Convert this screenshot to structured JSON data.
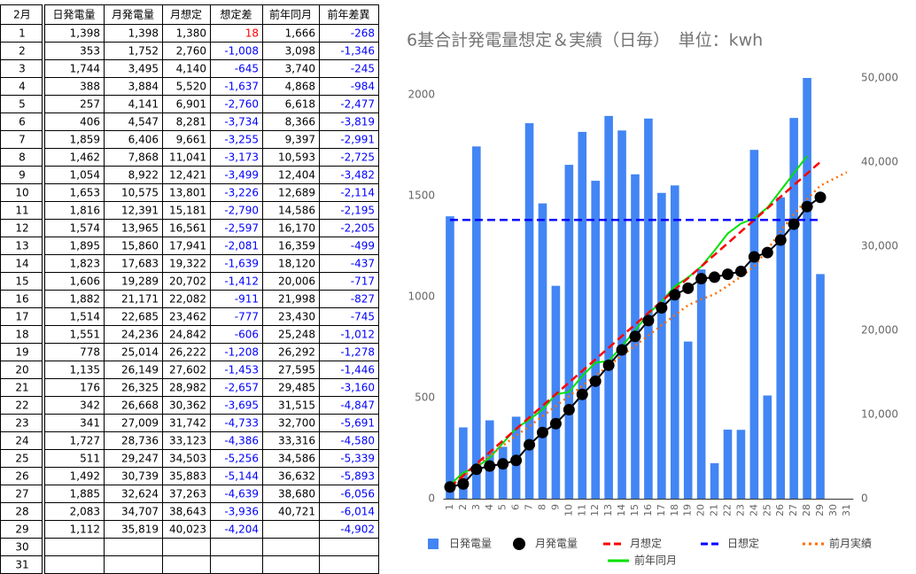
{
  "table": {
    "header": [
      "2月",
      "日発電量",
      "月発電量",
      "月想定",
      "想定差",
      "前年同月",
      "前年差異"
    ],
    "rows": [
      [
        "1",
        "1,398",
        "1,398",
        "1,380",
        "18",
        "1,666",
        "-268"
      ],
      [
        "2",
        "353",
        "1,752",
        "2,760",
        "-1,008",
        "3,098",
        "-1,346"
      ],
      [
        "3",
        "1,744",
        "3,495",
        "4,140",
        "-645",
        "3,740",
        "-245"
      ],
      [
        "4",
        "388",
        "3,884",
        "5,520",
        "-1,637",
        "4,868",
        "-984"
      ],
      [
        "5",
        "257",
        "4,141",
        "6,901",
        "-2,760",
        "6,618",
        "-2,477"
      ],
      [
        "6",
        "406",
        "4,547",
        "8,281",
        "-3,734",
        "8,366",
        "-3,819"
      ],
      [
        "7",
        "1,859",
        "6,406",
        "9,661",
        "-3,255",
        "9,397",
        "-2,991"
      ],
      [
        "8",
        "1,462",
        "7,868",
        "11,041",
        "-3,173",
        "10,593",
        "-2,725"
      ],
      [
        "9",
        "1,054",
        "8,922",
        "12,421",
        "-3,499",
        "12,404",
        "-3,482"
      ],
      [
        "10",
        "1,653",
        "10,575",
        "13,801",
        "-3,226",
        "12,689",
        "-2,114"
      ],
      [
        "11",
        "1,816",
        "12,391",
        "15,181",
        "-2,790",
        "14,586",
        "-2,195"
      ],
      [
        "12",
        "1,574",
        "13,965",
        "16,561",
        "-2,597",
        "16,170",
        "-2,205"
      ],
      [
        "13",
        "1,895",
        "15,860",
        "17,941",
        "-2,081",
        "16,359",
        "-499"
      ],
      [
        "14",
        "1,823",
        "17,683",
        "19,322",
        "-1,639",
        "18,120",
        "-437"
      ],
      [
        "15",
        "1,606",
        "19,289",
        "20,702",
        "-1,412",
        "20,006",
        "-717"
      ],
      [
        "16",
        "1,882",
        "21,171",
        "22,082",
        "-911",
        "21,998",
        "-827"
      ],
      [
        "17",
        "1,514",
        "22,685",
        "23,462",
        "-777",
        "23,430",
        "-745"
      ],
      [
        "18",
        "1,551",
        "24,236",
        "24,842",
        "-606",
        "25,248",
        "-1,012"
      ],
      [
        "19",
        "778",
        "25,014",
        "26,222",
        "-1,208",
        "26,292",
        "-1,278"
      ],
      [
        "20",
        "1,135",
        "26,149",
        "27,602",
        "-1,453",
        "27,595",
        "-1,446"
      ],
      [
        "21",
        "176",
        "26,325",
        "28,982",
        "-2,657",
        "29,485",
        "-3,160"
      ],
      [
        "22",
        "342",
        "26,668",
        "30,362",
        "-3,695",
        "31,515",
        "-4,847"
      ],
      [
        "23",
        "341",
        "27,009",
        "31,742",
        "-4,733",
        "32,700",
        "-5,691"
      ],
      [
        "24",
        "1,727",
        "28,736",
        "33,123",
        "-4,386",
        "33,316",
        "-4,580"
      ],
      [
        "25",
        "511",
        "29,247",
        "34,503",
        "-5,256",
        "34,586",
        "-5,339"
      ],
      [
        "26",
        "1,492",
        "30,739",
        "35,883",
        "-5,144",
        "36,632",
        "-5,893"
      ],
      [
        "27",
        "1,885",
        "32,624",
        "37,263",
        "-4,639",
        "38,680",
        "-6,056"
      ],
      [
        "28",
        "2,083",
        "34,707",
        "38,643",
        "-3,936",
        "40,721",
        "-6,014"
      ],
      [
        "29",
        "1,112",
        "35,819",
        "40,023",
        "-4,204",
        null,
        "-4,902"
      ],
      [
        "30"
      ],
      [
        "31"
      ]
    ]
  },
  "chart_data": {
    "type": "combo",
    "title": "6基合計発電量想定＆実績（日毎）　単位：kwh",
    "categories": [
      "1",
      "2",
      "3",
      "4",
      "5",
      "6",
      "7",
      "8",
      "9",
      "10",
      "11",
      "12",
      "13",
      "14",
      "15",
      "16",
      "17",
      "18",
      "19",
      "20",
      "21",
      "22",
      "23",
      "24",
      "25",
      "26",
      "27",
      "28",
      "29",
      "30",
      "31"
    ],
    "ylim": [
      0,
      2083
    ],
    "yticks": [
      0,
      500,
      1000,
      1500,
      2000
    ],
    "y2lim": [
      0,
      50000
    ],
    "y2ticks": [
      0,
      {
        "value": 10000,
        "label": "10,000"
      },
      {
        "value": 20000,
        "label": "20,000"
      },
      {
        "value": 30000,
        "label": "30,000"
      },
      {
        "value": 40000,
        "label": "40,000"
      },
      {
        "value": 50000,
        "label": "50,000"
      }
    ],
    "grid": false,
    "legend": "bottom",
    "series": [
      {
        "name": "日発電量",
        "color": "#4285f4",
        "mark": "bar",
        "values": [
          1398,
          353,
          1744,
          388,
          257,
          406,
          1859,
          1462,
          1054,
          1653,
          1816,
          1574,
          1895,
          1823,
          1606,
          1882,
          1514,
          1551,
          778,
          1135,
          176,
          342,
          341,
          1727,
          511,
          1492,
          1885,
          2083,
          1112,
          null,
          null
        ]
      },
      {
        "name": "月発電量",
        "color": "#000000",
        "mark": "marker-line",
        "axis": "y2",
        "values": [
          1398,
          1752,
          3495,
          3884,
          4141,
          4547,
          6406,
          7868,
          8922,
          10575,
          12391,
          13965,
          15860,
          17683,
          19289,
          21171,
          22685,
          24236,
          25014,
          26149,
          26325,
          26668,
          27009,
          28736,
          29247,
          30739,
          32624,
          34707,
          35819,
          null,
          null
        ]
      },
      {
        "name": "月想定",
        "color": "#ff0000",
        "mark": "dashed",
        "axis": "y2",
        "values": [
          1380,
          2760,
          4140,
          5520,
          6901,
          8281,
          9661,
          11041,
          12421,
          13801,
          15181,
          16561,
          17941,
          19322,
          20702,
          22082,
          23462,
          24842,
          26222,
          27602,
          28982,
          30362,
          31742,
          33123,
          34503,
          35883,
          37263,
          38643,
          40023,
          null,
          null
        ]
      },
      {
        "name": "日想定",
        "color": "#0000ff",
        "mark": "dashed",
        "values": [
          1380,
          1380,
          1380,
          1380,
          1380,
          1380,
          1380,
          1380,
          1380,
          1380,
          1380,
          1380,
          1380,
          1380,
          1380,
          1380,
          1380,
          1380,
          1380,
          1380,
          1380,
          1380,
          1380,
          1380,
          1380,
          1380,
          1380,
          1380,
          1380,
          null,
          null
        ]
      },
      {
        "name": "前月実績",
        "color": "#ff6d01",
        "mark": "dotted",
        "axis": "y2",
        "values": [
          1300,
          2600,
          3900,
          5100,
          6300,
          7500,
          8600,
          9800,
          11000,
          12200,
          13400,
          14600,
          15800,
          17000,
          18200,
          19400,
          20600,
          21800,
          23000,
          23700,
          24300,
          25300,
          26400,
          27600,
          29600,
          31800,
          33800,
          35600,
          37200,
          38000,
          38800
        ]
      },
      {
        "name": "前年同月",
        "color": "#00e000",
        "mark": "line",
        "axis": "y2",
        "values": [
          1666,
          3098,
          3740,
          4868,
          6618,
          8366,
          9397,
          10593,
          12404,
          12689,
          14586,
          16170,
          16359,
          18120,
          20006,
          21998,
          23430,
          25248,
          26292,
          27595,
          29485,
          31515,
          32700,
          33316,
          34586,
          36632,
          38680,
          40721,
          null,
          null,
          null
        ]
      }
    ]
  }
}
